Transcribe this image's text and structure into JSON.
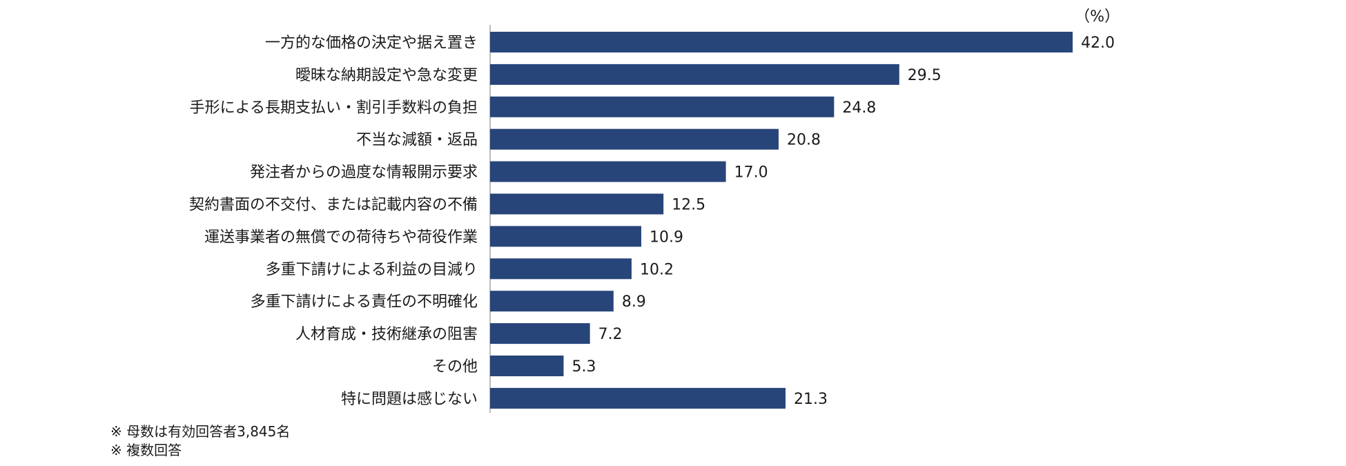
{
  "chart_data": {
    "type": "bar",
    "orientation": "horizontal",
    "unit": "（%）",
    "categories": [
      "一方的な価格の決定や据え置き",
      "曖昧な納期設定や急な変更",
      "手形による長期支払い・割引手数料の負担",
      "不当な減額・返品",
      "発注者からの過度な情報開示要求",
      "契約書面の不交付、または記載内容の不備",
      "運送事業者の無償での荷待ちや荷役作業",
      "多重下請けによる利益の目減り",
      "多重下請けによる責任の不明確化",
      "人材育成・技術継承の阻害",
      "その他",
      "特に問題は感じない"
    ],
    "values": [
      42.0,
      29.5,
      24.8,
      20.8,
      17.0,
      12.5,
      10.9,
      10.2,
      8.9,
      7.2,
      5.3,
      21.3
    ],
    "value_labels": [
      "42.0",
      "29.5",
      "24.8",
      "20.8",
      "17.0",
      "12.5",
      "10.9",
      "10.2",
      "8.9",
      "7.2",
      "5.3",
      "21.3"
    ],
    "bar_color": "#28457a",
    "xlim": [
      0,
      42
    ],
    "grid": false,
    "legend": "none"
  },
  "notes": [
    "※ 母数は有効回答者3,845名",
    "※ 複数回答"
  ]
}
